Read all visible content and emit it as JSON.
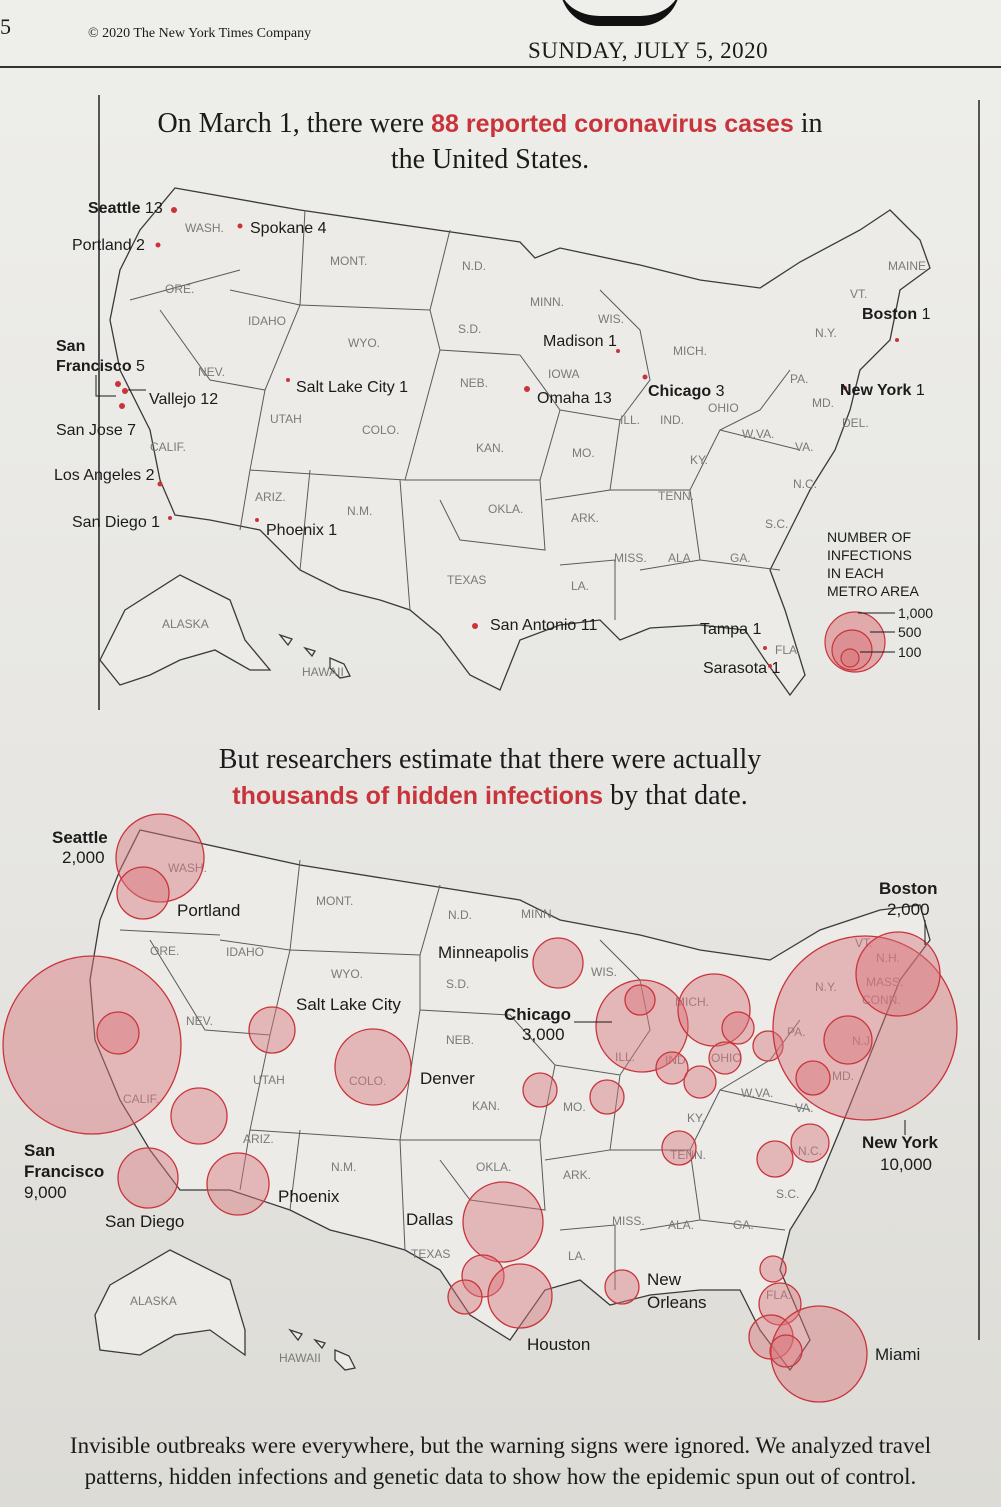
{
  "masthead": {
    "page_number": "5",
    "copyright": "© 2020 The New York Times Company",
    "date": "SUNDAY, JULY 5, 2020"
  },
  "colors": {
    "accent": "#c9343b",
    "bubble_fill": "#d9767c",
    "ink": "#1b1b1b"
  },
  "map1": {
    "headline_pre": "On March 1, there were ",
    "headline_highlight": "88 reported coronavirus cases",
    "headline_post": " in the United States.",
    "legend": {
      "title": [
        "NUMBER OF",
        "INFECTIONS",
        "IN  EACH",
        "METRO AREA"
      ],
      "values": [
        "1,000",
        "500",
        "100"
      ]
    },
    "states": [
      "WASH.",
      "ORE.",
      "IDAHO",
      "MONT.",
      "N.D.",
      "S.D.",
      "MINN.",
      "WIS.",
      "MICH.",
      "WYO.",
      "NEB.",
      "IOWA",
      "NEV.",
      "UTAH",
      "COLO.",
      "KAN.",
      "MO.",
      "ILL.",
      "IND.",
      "OHIO",
      "PA.",
      "N.Y.",
      "VT.",
      "MAINE",
      "MD.",
      "DEL.",
      "W.VA.",
      "VA.",
      "KY.",
      "N.C.",
      "TENN.",
      "S.C.",
      "CALIF.",
      "ARIZ.",
      "N.M.",
      "OKLA.",
      "ARK.",
      "MISS.",
      "ALA.",
      "GA.",
      "TEXAS",
      "LA.",
      "FLA.",
      "ALASKA",
      "HAWAII"
    ],
    "cities": [
      {
        "name": "Seattle",
        "count": "13"
      },
      {
        "name": "Spokane",
        "count": "4"
      },
      {
        "name": "Portland",
        "count": "2"
      },
      {
        "name": "San Francisco",
        "count": "5"
      },
      {
        "name": "Vallejo",
        "count": "12"
      },
      {
        "name": "San Jose",
        "count": "7"
      },
      {
        "name": "Los Angeles",
        "count": "2"
      },
      {
        "name": "San Diego",
        "count": "1"
      },
      {
        "name": "Salt Lake City",
        "count": "1"
      },
      {
        "name": "Phoenix",
        "count": "1"
      },
      {
        "name": "Madison",
        "count": "1"
      },
      {
        "name": "Omaha",
        "count": "13"
      },
      {
        "name": "Chicago",
        "count": "3"
      },
      {
        "name": "Boston",
        "count": "1"
      },
      {
        "name": "New York",
        "count": "1"
      },
      {
        "name": "San Antonio",
        "count": "11"
      },
      {
        "name": "Tampa",
        "count": "1"
      },
      {
        "name": "Sarasota",
        "count": "1"
      }
    ]
  },
  "map2": {
    "headline_line1": "But researchers estimate that there were actually",
    "headline_highlight": "thousands of hidden infections",
    "headline_post": " by that date.",
    "states": [
      "WASH.",
      "ORE.",
      "IDAHO",
      "MONT.",
      "N.D.",
      "S.D.",
      "MINN.",
      "WIS.",
      "MICH.",
      "WYO.",
      "NEB.",
      "NEV.",
      "UTAH",
      "COLO.",
      "KAN.",
      "MO.",
      "ILL.",
      "IND.",
      "OHIO",
      "PA.",
      "N.Y.",
      "VT.",
      "N.H.",
      "MASS.",
      "CONN.",
      "N.J.",
      "MD.",
      "W.VA.",
      "VA.",
      "KY.",
      "N.C.",
      "TENN.",
      "S.C.",
      "CALIF.",
      "ARIZ.",
      "N.M.",
      "OKLA.",
      "ARK.",
      "MISS.",
      "ALA.",
      "GA.",
      "TEXAS",
      "LA.",
      "FLA.",
      "ALASKA",
      "HAWAII"
    ],
    "labeled_cities": [
      {
        "name": "Seattle",
        "estimate": "2,000"
      },
      {
        "name": "Portland"
      },
      {
        "name": "San Francisco",
        "estimate": "9,000"
      },
      {
        "name": "San Diego"
      },
      {
        "name": "Salt Lake City"
      },
      {
        "name": "Phoenix"
      },
      {
        "name": "Denver"
      },
      {
        "name": "Minneapolis"
      },
      {
        "name": "Chicago",
        "estimate": "3,000"
      },
      {
        "name": "Dallas"
      },
      {
        "name": "Houston"
      },
      {
        "name": "New Orleans"
      },
      {
        "name": "Miami"
      },
      {
        "name": "Boston",
        "estimate": "2,000"
      },
      {
        "name": "New York",
        "estimate": "10,000"
      }
    ]
  },
  "caption": {
    "line1": "Invisible outbreaks were everywhere, but the warning signs were ignored. We analyzed travel",
    "line2": "patterns, hidden infections and genetic data to show how the epidemic spun out of control."
  }
}
